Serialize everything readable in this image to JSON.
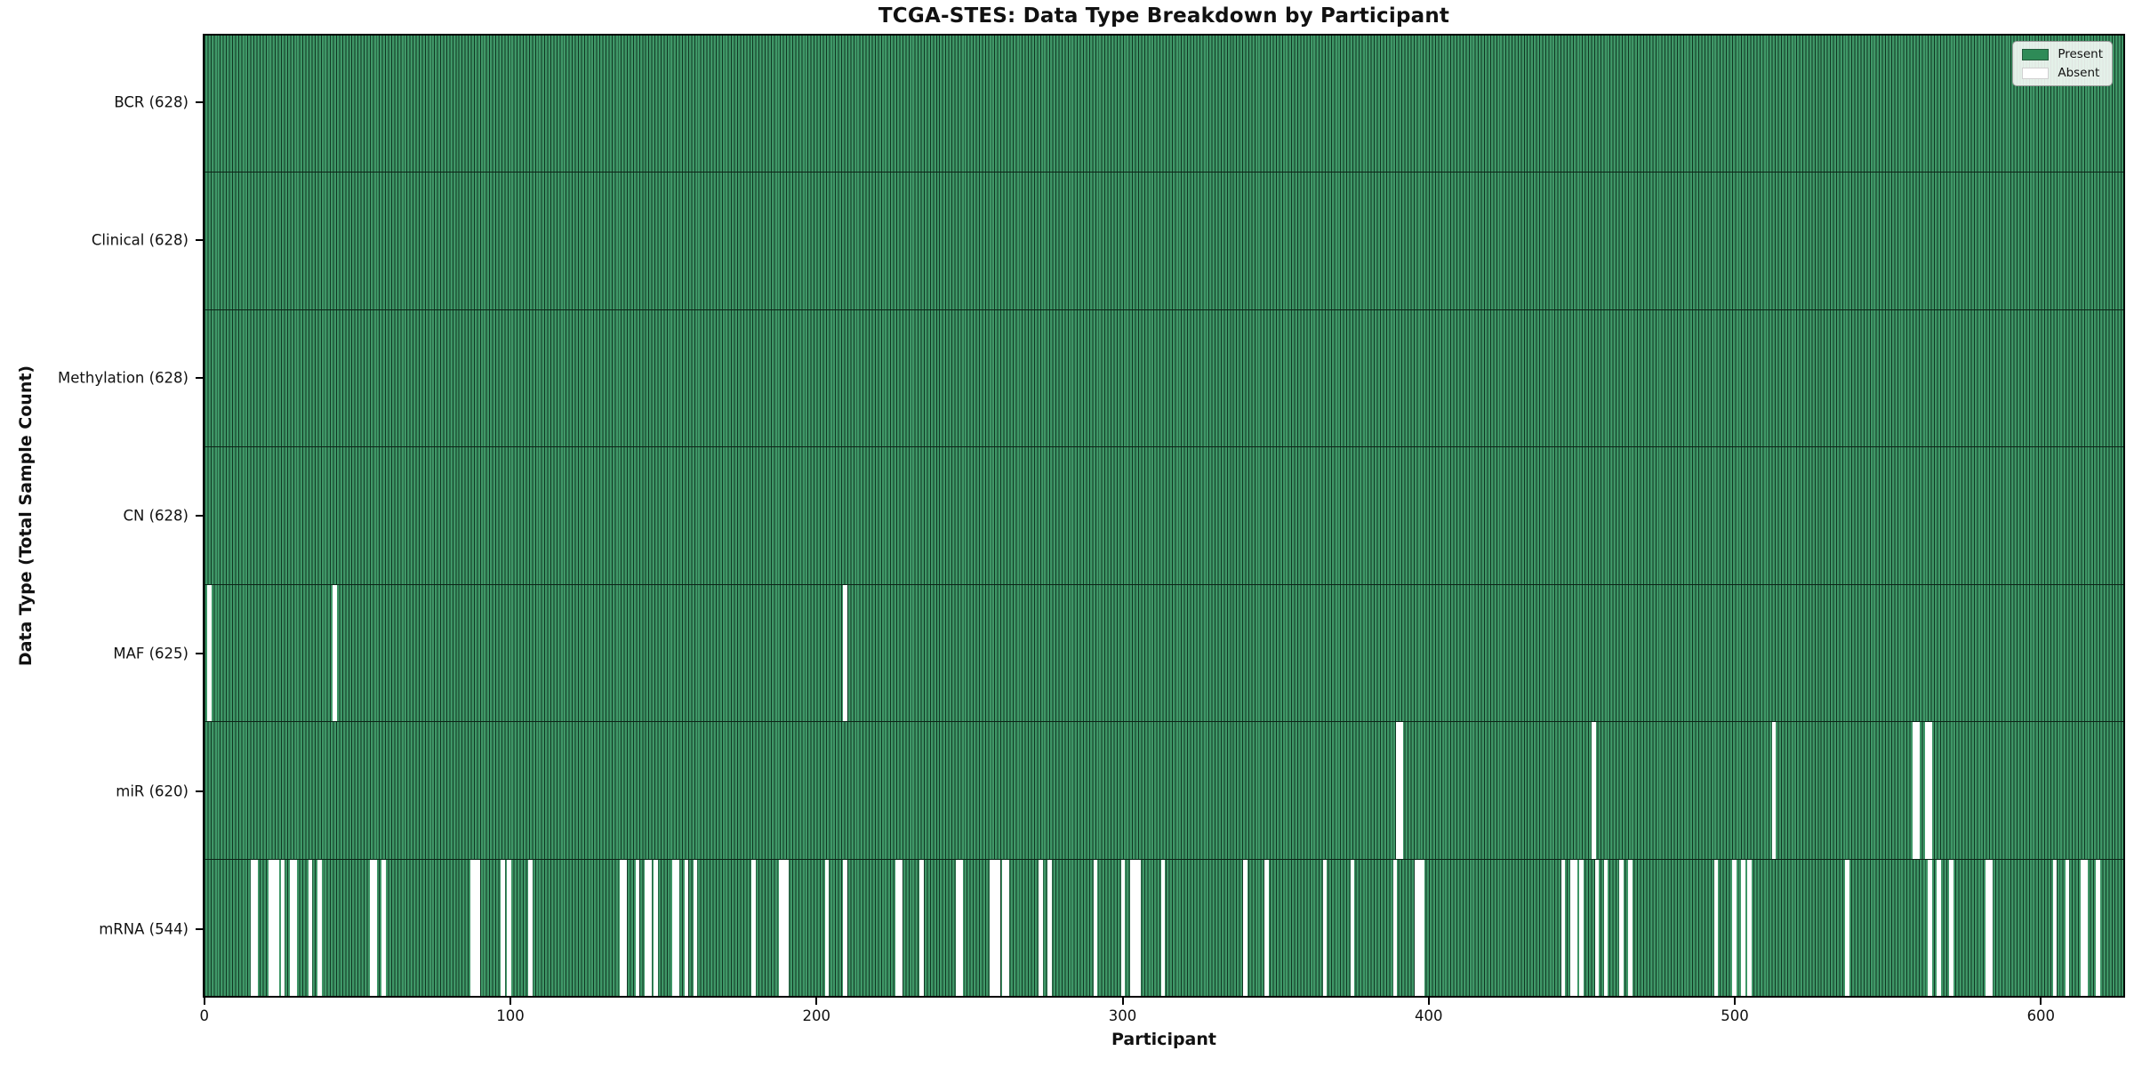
{
  "title": "TCGA-STES: Data Type Breakdown by Participant",
  "xlabel": "Participant",
  "ylabel": "Data Type (Total Sample Count)",
  "legend": {
    "present_label": "Present",
    "absent_label": "Absent"
  },
  "colors": {
    "present": "#2e8b57",
    "present_fill": "#3f9767",
    "bar_edge": "#0c2417",
    "absent": "#ffffff",
    "background": "#ffffff"
  },
  "chart_data": {
    "type": "heatmap",
    "title": "TCGA-STES: Data Type Breakdown by Participant",
    "xlabel": "Participant",
    "ylabel": "Data Type (Total Sample Count)",
    "legend_entries": [
      "Present",
      "Absent"
    ],
    "legend_position": "upper right",
    "n_participants": 628,
    "xlim": [
      -0.5,
      627.5
    ],
    "x_ticks": [
      0,
      100,
      200,
      300,
      400,
      500,
      600
    ],
    "grid": false,
    "rows": [
      {
        "name": "BCR",
        "label": "BCR (628)",
        "count": 628,
        "absent": []
      },
      {
        "name": "Clinical",
        "label": "Clinical (628)",
        "count": 628,
        "absent": []
      },
      {
        "name": "Methylation",
        "label": "Methylation (628)",
        "count": 628,
        "absent": []
      },
      {
        "name": "CN",
        "label": "CN (628)",
        "count": 628,
        "absent": []
      },
      {
        "name": "MAF",
        "label": "MAF (625)",
        "count": 625,
        "absent": [
          1,
          42,
          209
        ]
      },
      {
        "name": "miR",
        "label": "miR (620)",
        "count": 620,
        "absent": [
          390,
          391,
          454,
          513,
          559,
          560,
          563,
          564
        ]
      },
      {
        "name": "mRNA",
        "label": "mRNA (544)",
        "count": 544,
        "absent": [
          15,
          16,
          21,
          22,
          23,
          25,
          28,
          29,
          34,
          37,
          54,
          55,
          58,
          87,
          88,
          89,
          97,
          99,
          106,
          136,
          137,
          141,
          144,
          145,
          147,
          153,
          154,
          157,
          160,
          179,
          188,
          189,
          190,
          203,
          209,
          226,
          227,
          234,
          246,
          247,
          257,
          258,
          259,
          261,
          262,
          273,
          276,
          291,
          300,
          303,
          304,
          305,
          313,
          340,
          347,
          366,
          375,
          389,
          396,
          397,
          398,
          444,
          447,
          448,
          450,
          455,
          458,
          463,
          466,
          494,
          500,
          503,
          505,
          537,
          564,
          567,
          571,
          583,
          584,
          605,
          609,
          614,
          615,
          619
        ]
      }
    ]
  }
}
